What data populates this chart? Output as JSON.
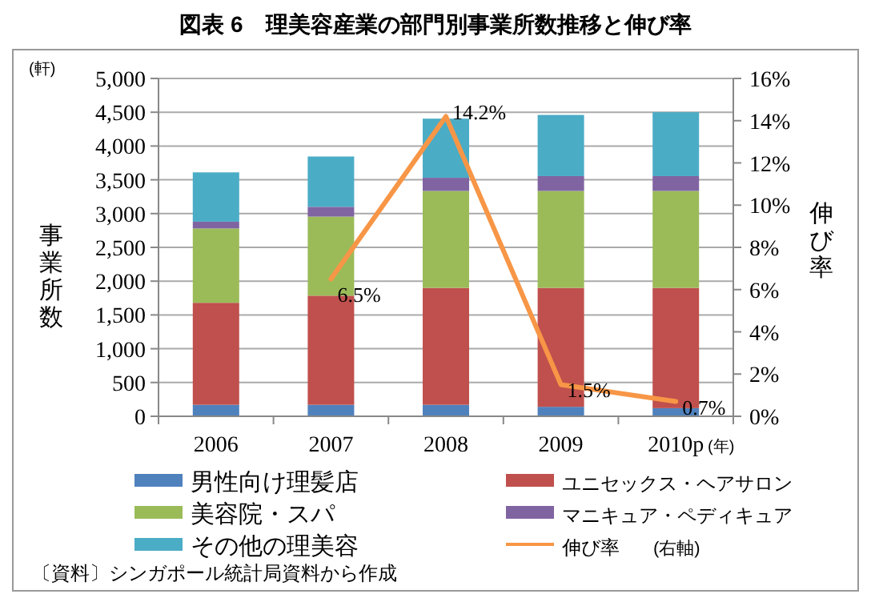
{
  "chart_data": {
    "type": "bar",
    "title": "図表 6　理美容産業の部門別事業所数推移と伸び率",
    "ylabel": "事業所数",
    "y2label": "伸び率",
    "categories": [
      "2006",
      "2007",
      "2008",
      "2009",
      "2010p"
    ],
    "stacked": true,
    "grid": "y",
    "legend": "bottom",
    "series": [
      {
        "name": "男性向け理髪店",
        "color": "#4f81bd",
        "values": [
          170,
          170,
          170,
          140,
          120
        ]
      },
      {
        "name": "ユニセックス・ヘアサロン",
        "color": "#c0504d",
        "values": [
          1510,
          1615,
          1730,
          1760,
          1780
        ]
      },
      {
        "name": "美容院・スパ",
        "color": "#9bbb59",
        "values": [
          1100,
          1170,
          1435,
          1435,
          1435
        ]
      },
      {
        "name": "マニキュア・ペディキュア",
        "color": "#8064a2",
        "values": [
          100,
          145,
          195,
          220,
          220
        ]
      },
      {
        "name": "その他の理美容",
        "color": "#4bacc6",
        "values": [
          730,
          745,
          875,
          905,
          945
        ]
      },
      {
        "name": "伸び率",
        "type": "line",
        "axis": "y2",
        "color": "#f79646",
        "values": [
          null,
          6.5,
          14.2,
          1.5,
          0.7
        ],
        "value_labels": [
          null,
          "6.5%",
          "14.2%",
          "1.5%",
          "0.7%"
        ]
      }
    ],
    "ylim": [
      0,
      5000
    ],
    "yticks": [
      0,
      500,
      {
        "value": 1000,
        "label": "1,000"
      },
      {
        "value": 1500,
        "label": "1,500"
      },
      {
        "value": 2000,
        "label": "2,000"
      },
      {
        "value": 2500,
        "label": "2,500"
      },
      {
        "value": 3000,
        "label": "3,000"
      },
      {
        "value": 3500,
        "label": "3,500"
      },
      {
        "value": 4000,
        "label": "4,000"
      },
      {
        "value": 4500,
        "label": "4,500"
      },
      {
        "value": 5000,
        "label": "5,000"
      }
    ],
    "y2lim": [
      0,
      16
    ],
    "y2ticks": [
      {
        "value": 0,
        "label": "0%"
      },
      {
        "value": 2,
        "label": "2%"
      },
      {
        "value": 4,
        "label": "4%"
      },
      {
        "value": 6,
        "label": "6%"
      },
      {
        "value": 8,
        "label": "8%"
      },
      {
        "value": 10,
        "label": "10%"
      },
      {
        "value": 12,
        "label": "12%"
      },
      {
        "value": 14,
        "label": "14%"
      },
      {
        "value": 16,
        "label": "16%"
      }
    ],
    "annotations": [
      "(軒)",
      "(年)",
      "(右軸)",
      "〔資料〕シンガポール統計局資料から作成"
    ]
  }
}
